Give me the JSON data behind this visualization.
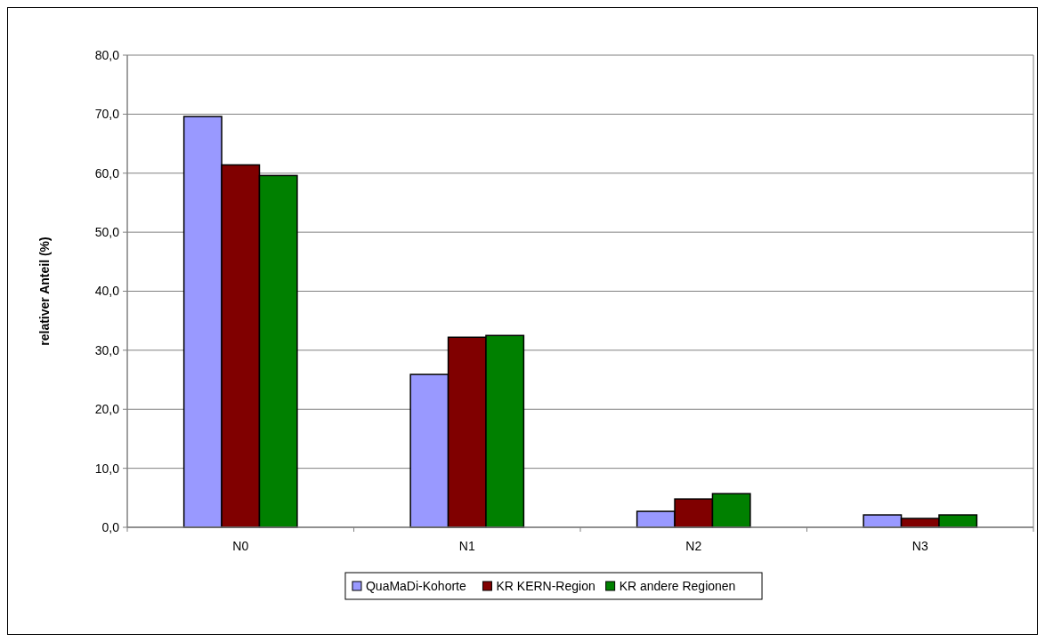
{
  "chart_data": {
    "type": "bar",
    "ylabel": "relativer Anteil (%)",
    "categories": [
      "N0",
      "N1",
      "N2",
      "N3"
    ],
    "series": [
      {
        "name": "QuaMaDi-Kohorte",
        "color": "#9999ff",
        "values": [
          69.6,
          25.9,
          2.7,
          2.1
        ]
      },
      {
        "name": "KR KERN-Region",
        "color": "#800000",
        "values": [
          61.4,
          32.2,
          4.8,
          1.5
        ]
      },
      {
        "name": "KR andere Regionen",
        "color": "#008000",
        "values": [
          59.6,
          32.5,
          5.7,
          2.1
        ]
      }
    ],
    "ylim": [
      0,
      80
    ],
    "yticks": [
      {
        "value": 0,
        "label": "0,0"
      },
      {
        "value": 10,
        "label": "10,0"
      },
      {
        "value": 20,
        "label": "20,0"
      },
      {
        "value": 30,
        "label": "30,0"
      },
      {
        "value": 40,
        "label": "40,0"
      },
      {
        "value": 50,
        "label": "50,0"
      },
      {
        "value": 60,
        "label": "60,0"
      },
      {
        "value": 70,
        "label": "70,0"
      },
      {
        "value": 80,
        "label": "80,0"
      }
    ],
    "grid": "y",
    "legend": "bottom"
  }
}
